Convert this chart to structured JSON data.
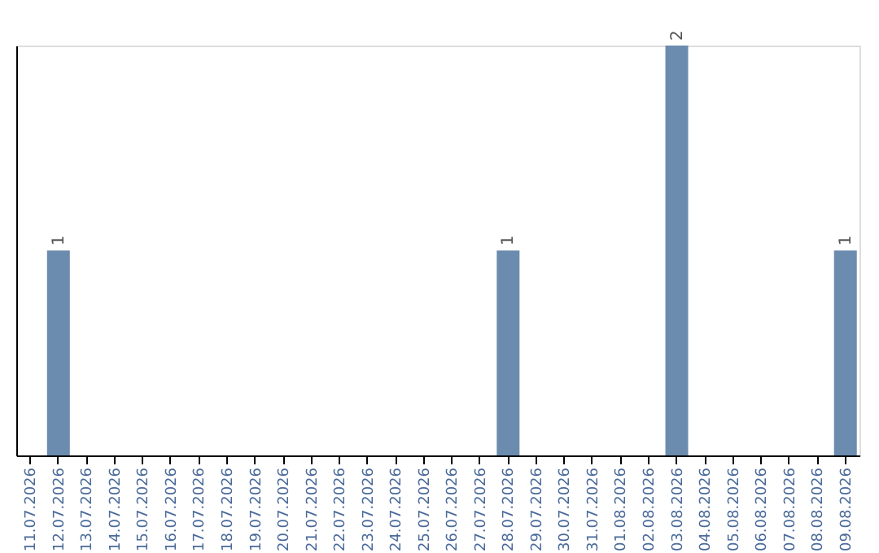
{
  "chart_data": {
    "type": "bar",
    "categories": [
      "11.07.2026",
      "12.07.2026",
      "13.07.2026",
      "14.07.2026",
      "15.07.2026",
      "16.07.2026",
      "17.07.2026",
      "18.07.2026",
      "19.07.2026",
      "20.07.2026",
      "21.07.2026",
      "22.07.2026",
      "23.07.2026",
      "24.07.2026",
      "25.07.2026",
      "26.07.2026",
      "27.07.2026",
      "28.07.2026",
      "29.07.2026",
      "30.07.2026",
      "31.07.2026",
      "01.08.2026",
      "02.08.2026",
      "03.08.2026",
      "04.08.2026",
      "05.08.2026",
      "06.08.2026",
      "07.08.2026",
      "08.08.2026",
      "09.08.2026"
    ],
    "values": [
      0,
      1,
      0,
      0,
      0,
      0,
      0,
      0,
      0,
      0,
      0,
      0,
      0,
      0,
      0,
      0,
      0,
      1,
      0,
      0,
      0,
      0,
      0,
      2,
      0,
      0,
      0,
      0,
      0,
      1
    ],
    "value_labels": [
      null,
      "1",
      null,
      null,
      null,
      null,
      null,
      null,
      null,
      null,
      null,
      null,
      null,
      null,
      null,
      null,
      null,
      "1",
      null,
      null,
      null,
      null,
      null,
      "2",
      null,
      null,
      null,
      null,
      null,
      "1"
    ],
    "color": "#6b8cae",
    "ylim": [
      0,
      2
    ],
    "tick_labels": "x",
    "grid": false
  }
}
